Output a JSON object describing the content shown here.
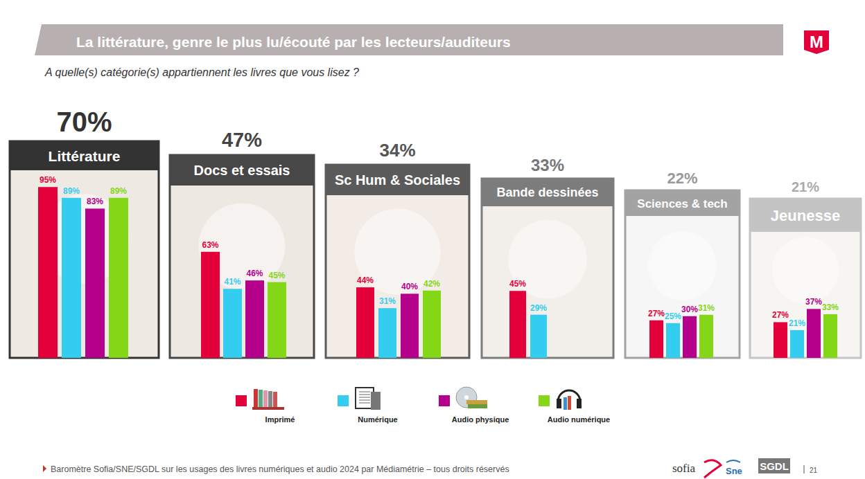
{
  "chart_data": {
    "type": "bar",
    "title": "La littérature, genre le plus lu/écouté par les lecteurs/auditeurs",
    "subtitle": "A quelle(s) catégorie(s) appartiennent les livres que vous lisez ?",
    "categories": [
      "Littérature",
      "Docs et essais",
      "Sc Hum & Sociales",
      "Bande dessinées",
      "Sciences & tech",
      "Jeunesse"
    ],
    "totals": {
      "values": [
        70,
        47,
        34,
        33,
        22,
        21
      ],
      "value_labels": [
        "70%",
        "47%",
        "34%",
        "33%",
        "22%",
        "21%"
      ]
    },
    "series": [
      {
        "name": "Imprimé",
        "color": "#e4003a",
        "values": [
          95,
          63,
          44,
          45,
          27,
          27
        ],
        "value_labels": [
          "95%",
          "63%",
          "44%",
          "45%",
          "27%",
          "27%"
        ]
      },
      {
        "name": "Numérique",
        "color": "#33cdef",
        "values": [
          89,
          41,
          31,
          29,
          25,
          21
        ],
        "value_labels": [
          "89%",
          "41%",
          "31%",
          "29%",
          "25%",
          "21%"
        ]
      },
      {
        "name": "Audio physique",
        "color": "#b5008c",
        "values": [
          83,
          46,
          40,
          null,
          30,
          37
        ],
        "value_labels": [
          "83%",
          "46%",
          "40%",
          null,
          "30%",
          "37%"
        ]
      },
      {
        "name": "Audio numérique",
        "color": "#84d716",
        "values": [
          89,
          45,
          42,
          null,
          31,
          33
        ],
        "value_labels": [
          "89%",
          "45%",
          "42%",
          null,
          "31%",
          "33%"
        ]
      }
    ],
    "ylim": [
      0,
      100
    ],
    "tick_labels": false,
    "data_labels": true,
    "legend": "bottom"
  },
  "footer": {
    "source": "Baromètre Sofia/SNE/SGDL sur les usages des livres numériques et audio 2024 par Médiamétrie – tous droits réservés",
    "logos": [
      "sofia",
      "Sne",
      "SGDL"
    ],
    "page": 21
  },
  "brand": "M"
}
